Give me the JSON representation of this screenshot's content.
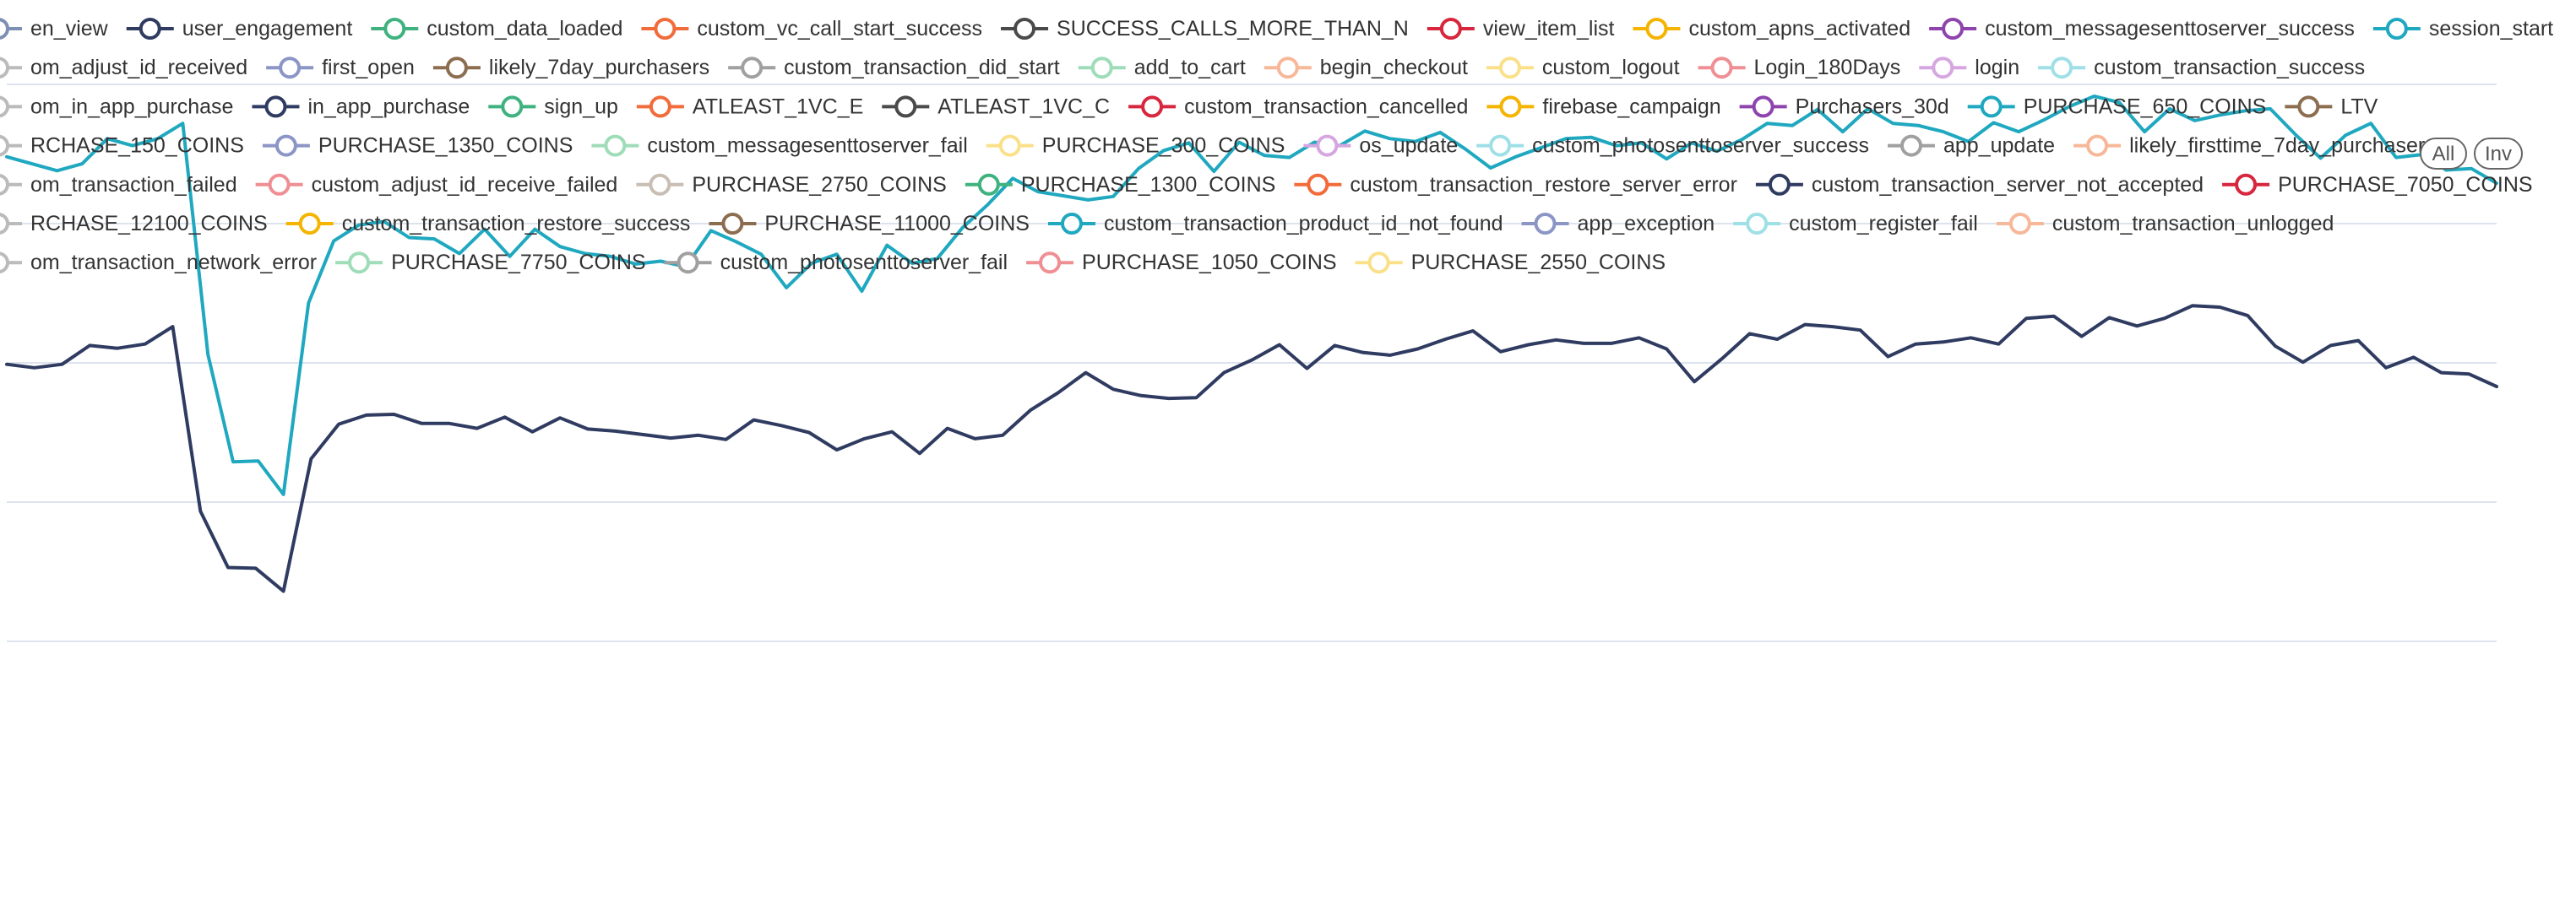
{
  "chart_data": {
    "type": "line",
    "title": "",
    "xlabel": "",
    "ylabel": "",
    "grid": true,
    "legend_placement": "top",
    "legend_controls": [
      "All",
      "Inv"
    ],
    "ylim": [
      0,
      100
    ],
    "legend": [
      {
        "name": "en_view",
        "color": "#7d8fb3"
      },
      {
        "name": "user_engagement",
        "color": "#2f3b60"
      },
      {
        "name": "custom_data_loaded",
        "color": "#3fb27f"
      },
      {
        "name": "custom_vc_call_start_success",
        "color": "#f26b3a"
      },
      {
        "name": "SUCCESS_CALLS_MORE_THAN_N",
        "color": "#4a4a4a"
      },
      {
        "name": "view_item_list",
        "color": "#d7263d"
      },
      {
        "name": "custom_apns_activated",
        "color": "#f4b400"
      },
      {
        "name": "custom_messagesenttoserver_success",
        "color": "#8e44ad"
      },
      {
        "name": "session_start",
        "color": "#1fa8bf"
      },
      {
        "name": "om_adjust_id_received",
        "color": "#bbbbbb"
      },
      {
        "name": "first_open",
        "color": "#8c96c6"
      },
      {
        "name": "likely_7day_purchasers",
        "color": "#8c6d4f"
      },
      {
        "name": "custom_transaction_did_start",
        "color": "#a0a0a0"
      },
      {
        "name": "add_to_cart",
        "color": "#9fdcb8"
      },
      {
        "name": "begin_checkout",
        "color": "#f7b89a"
      },
      {
        "name": "custom_logout",
        "color": "#fbe08a"
      },
      {
        "name": "Login_180Days",
        "color": "#ef8f94"
      },
      {
        "name": "login",
        "color": "#d6a6e0"
      },
      {
        "name": "custom_transaction_success",
        "color": "#9ee0e6"
      },
      {
        "name": "om_in_app_purchase",
        "color": "#bbbbbb"
      },
      {
        "name": "in_app_purchase",
        "color": "#2f3b60"
      },
      {
        "name": "sign_up",
        "color": "#3fb27f"
      },
      {
        "name": "ATLEAST_1VC_E",
        "color": "#f26b3a"
      },
      {
        "name": "ATLEAST_1VC_C",
        "color": "#4a4a4a"
      },
      {
        "name": "custom_transaction_cancelled",
        "color": "#d7263d"
      },
      {
        "name": "firebase_campaign",
        "color": "#f4b400"
      },
      {
        "name": "Purchasers_30d",
        "color": "#8e44ad"
      },
      {
        "name": "PURCHASE_650_COINS",
        "color": "#1fa8bf"
      },
      {
        "name": "LTV",
        "color": "#8c6d4f"
      },
      {
        "name": "RCHASE_150_COINS",
        "color": "#bbbbbb"
      },
      {
        "name": "PURCHASE_1350_COINS",
        "color": "#8c96c6"
      },
      {
        "name": "custom_messagesenttoserver_fail",
        "color": "#9fdcb8"
      },
      {
        "name": "PURCHASE_300_COINS",
        "color": "#fbe08a"
      },
      {
        "name": "os_update",
        "color": "#d6a6e0"
      },
      {
        "name": "custom_photosenttoserver_success",
        "color": "#9ee0e6"
      },
      {
        "name": "app_update",
        "color": "#a0a0a0"
      },
      {
        "name": "likely_firsttime_7day_purchasers",
        "color": "#f7b89a"
      },
      {
        "name": "om_transaction_failed",
        "color": "#bbbbbb"
      },
      {
        "name": "custom_adjust_id_receive_failed",
        "color": "#ef8f94"
      },
      {
        "name": "PURCHASE_2750_COINS",
        "color": "#c8beb3"
      },
      {
        "name": "PURCHASE_1300_COINS",
        "color": "#3fb27f"
      },
      {
        "name": "custom_transaction_restore_server_error",
        "color": "#f26b3a"
      },
      {
        "name": "custom_transaction_server_not_accepted",
        "color": "#2f3b60"
      },
      {
        "name": "PURCHASE_7050_COINS",
        "color": "#d7263d"
      },
      {
        "name": "RCHASE_12100_COINS",
        "color": "#bbbbbb"
      },
      {
        "name": "custom_transaction_restore_success",
        "color": "#f4b400"
      },
      {
        "name": "PURCHASE_11000_COINS",
        "color": "#8c6d4f"
      },
      {
        "name": "custom_transaction_product_id_not_found",
        "color": "#1fa8bf"
      },
      {
        "name": "app_exception",
        "color": "#8c96c6"
      },
      {
        "name": "custom_register_fail",
        "color": "#9ee0e6"
      },
      {
        "name": "custom_transaction_unlogged",
        "color": "#f7b89a"
      },
      {
        "name": "om_transaction_network_error",
        "color": "#bbbbbb"
      },
      {
        "name": "PURCHASE_7750_COINS",
        "color": "#9fdcb8"
      },
      {
        "name": "custom_photosenttoserver_fail",
        "color": "#a0a0a0"
      },
      {
        "name": "PURCHASE_1050_COINS",
        "color": "#ef8f94"
      },
      {
        "name": "PURCHASE_2550_COINS",
        "color": "#fbe08a"
      }
    ],
    "series": [
      {
        "color": "#1fa8bf",
        "values": [
          89.6,
          88.6,
          87.6,
          88.6,
          92.2,
          91.2,
          92.2,
          94.4,
          61.2,
          45.8,
          45.9,
          41.1,
          68.6,
          77.5,
          79.8,
          80.3,
          78.0,
          77.8,
          75.7,
          79.2,
          75.3,
          79.2,
          76.7,
          75.7,
          75.3,
          74.2,
          74.6,
          73.8,
          79.0,
          77.4,
          75.6,
          70.8,
          74.3,
          75.6,
          70.3,
          76.9,
          74.3,
          75.0,
          79.4,
          82.7,
          86.5,
          84.6,
          84.0,
          83.4,
          83.9,
          87.9,
          90.5,
          91.6,
          87.5,
          91.7,
          89.8,
          89.5,
          91.7,
          91.2,
          93.3,
          92.2,
          91.8,
          93.1,
          90.7,
          88.0,
          89.6,
          90.9,
          92.2,
          92.4,
          91.2,
          91.6,
          89.3,
          91.6,
          90.4,
          92.1,
          94.4,
          94.1,
          96.4,
          93.2,
          96.5,
          94.4,
          94.1,
          93.2,
          91.8,
          94.5,
          93.2,
          94.9,
          96.8,
          98.3,
          97.4,
          93.2,
          96.5,
          94.8,
          95.6,
          96.2,
          96.5,
          92.8,
          89.4,
          92.7,
          94.4,
          89.5,
          89.9,
          87.7,
          87.9,
          85.8
        ]
      },
      {
        "color": "#2f3b60",
        "values": [
          59.8,
          59.3,
          59.8,
          62.5,
          62.1,
          62.7,
          65.2,
          38.7,
          30.6,
          30.5,
          27.2,
          46.2,
          51.2,
          52.5,
          52.6,
          51.3,
          51.3,
          50.6,
          52.2,
          50.1,
          52.1,
          50.5,
          50.2,
          49.7,
          49.2,
          49.6,
          49.0,
          51.8,
          51.0,
          50.0,
          47.5,
          49.1,
          50.1,
          47.0,
          50.6,
          49.1,
          49.6,
          53.2,
          55.7,
          58.6,
          56.2,
          55.3,
          54.9,
          55.0,
          58.6,
          60.4,
          62.6,
          59.2,
          62.5,
          61.5,
          61.1,
          62.0,
          63.4,
          64.6,
          61.6,
          62.6,
          63.3,
          62.8,
          62.8,
          63.6,
          62.0,
          57.3,
          60.6,
          64.2,
          63.4,
          65.5,
          65.2,
          64.7,
          60.9,
          62.7,
          63.0,
          63.6,
          62.7,
          66.4,
          66.7,
          63.8,
          66.5,
          65.3,
          66.4,
          68.2,
          68.0,
          66.8,
          62.4,
          60.1,
          62.5,
          63.2,
          59.3,
          60.8,
          58.6,
          58.4,
          56.6
        ]
      }
    ]
  }
}
